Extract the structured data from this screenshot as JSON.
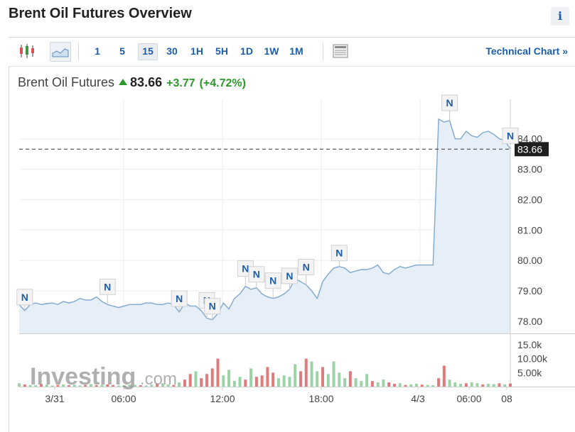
{
  "page": {
    "title": "Brent Oil Futures Overview",
    "info_label": "i"
  },
  "toolbar": {
    "chart_types": [
      "candlestick-chart-icon",
      "area-chart-icon"
    ],
    "timeframes": [
      "1",
      "5",
      "15",
      "30",
      "1H",
      "5H",
      "1D",
      "1W",
      "1M"
    ],
    "active_timeframe": "15",
    "technical_chart_label": "Technical Chart »"
  },
  "quote": {
    "name": "Brent Oil Futures",
    "price": "83.66",
    "change": "+3.77",
    "change_pct": "(+4.72%)"
  },
  "watermark": {
    "text": "Investing",
    "suffix": ".com"
  },
  "colors": {
    "line": "#7fa8d0",
    "area": "#e6eef7",
    "up_volume": "#9bd3a6",
    "down_volume": "#e07b7b",
    "last_label": "#1f1f1f"
  },
  "chart_data": [
    {
      "type": "area",
      "title": "Brent Oil Futures",
      "x_tick_labels": [
        "3/31",
        "06:00",
        "12:00",
        "18:00",
        "4/3",
        "06:00",
        "08"
      ],
      "y_tick_labels": [
        "78.00",
        "79.00",
        "80.00",
        "81.00",
        "82.00",
        "83.00",
        "84.00"
      ],
      "ylim": [
        77.6,
        85.3
      ],
      "last_value": 83.66,
      "last_value_label": "83.66",
      "grid": true,
      "x": [
        0,
        1,
        2,
        3,
        4,
        5,
        6,
        7,
        8,
        9,
        10,
        11,
        12,
        13,
        14,
        15,
        16,
        17,
        18,
        19,
        20,
        21,
        22,
        23,
        24,
        25,
        26,
        27,
        28,
        29,
        30,
        31,
        32,
        33,
        34,
        35,
        36,
        37,
        38,
        39,
        40,
        41,
        42,
        43,
        44,
        45,
        46,
        47,
        48,
        49,
        50,
        51,
        52,
        53,
        54,
        55,
        56,
        57,
        58,
        59,
        60,
        61,
        62,
        63,
        64,
        65,
        66,
        67,
        68,
        69,
        70,
        71,
        72,
        73,
        74,
        75,
        76,
        77,
        78,
        79,
        80,
        81,
        82,
        83,
        84,
        85,
        86,
        87,
        88,
        89
      ],
      "values": [
        78.55,
        78.35,
        78.55,
        78.6,
        78.55,
        78.58,
        78.6,
        78.55,
        78.65,
        78.6,
        78.65,
        78.75,
        78.7,
        78.7,
        78.8,
        78.65,
        78.55,
        78.5,
        78.45,
        78.5,
        78.55,
        78.55,
        78.55,
        78.6,
        78.6,
        78.55,
        78.55,
        78.6,
        78.55,
        78.3,
        78.6,
        78.5,
        78.5,
        78.35,
        78.1,
        78.05,
        78.25,
        78.6,
        78.4,
        78.75,
        78.9,
        79.15,
        79.05,
        79.1,
        78.9,
        78.8,
        78.75,
        78.8,
        78.9,
        79.05,
        79.4,
        79.3,
        79.2,
        79.0,
        78.75,
        79.3,
        79.55,
        79.75,
        79.8,
        79.75,
        79.6,
        79.65,
        79.7,
        79.7,
        79.75,
        79.85,
        79.6,
        79.55,
        79.7,
        79.8,
        79.75,
        79.8,
        79.85,
        79.85,
        79.85,
        79.85,
        84.65,
        84.55,
        84.6,
        84.0,
        84.0,
        84.25,
        84.1,
        84.05,
        84.2,
        84.25,
        84.15,
        84.0,
        83.95,
        83.66
      ],
      "news_markers": [
        {
          "label": "N",
          "index": 1
        },
        {
          "label": "N",
          "index": 16
        },
        {
          "label": "N",
          "index": 29
        },
        {
          "label": "N",
          "index": 34
        },
        {
          "label": "N",
          "index": 35
        },
        {
          "label": "N",
          "index": 41
        },
        {
          "label": "N",
          "index": 43
        },
        {
          "label": "N",
          "index": 46
        },
        {
          "label": "N",
          "index": 49
        },
        {
          "label": "N",
          "index": 52
        },
        {
          "label": "N",
          "index": 58
        },
        {
          "label": "N",
          "index": 78
        },
        {
          "label": "N",
          "index": 89
        }
      ]
    },
    {
      "type": "bar",
      "title": "Volume",
      "y_tick_labels": [
        "5.00k",
        "10.00k",
        "15.0k"
      ],
      "ylim": [
        0,
        17000
      ],
      "values": [
        1200,
        800,
        600,
        500,
        900,
        700,
        400,
        600,
        800,
        500,
        700,
        400,
        600,
        900,
        500,
        700,
        800,
        600,
        400,
        500,
        700,
        600,
        500,
        400,
        700,
        900,
        1200,
        800,
        600,
        1500,
        2500,
        4500,
        5500,
        3000,
        4500,
        6500,
        10000,
        4000,
        6000,
        2000,
        3500,
        2500,
        6500,
        3500,
        4000,
        7000,
        5000,
        3000,
        4000,
        3500,
        8000,
        5500,
        10000,
        9000,
        5500,
        7000,
        4500,
        9000,
        5000,
        3000,
        5500,
        3000,
        2000,
        4500,
        2000,
        1500,
        2500,
        1500,
        1000,
        1200,
        600,
        800,
        1000,
        700,
        600,
        500,
        3000,
        7500,
        2500,
        1500,
        1000,
        1200,
        1500,
        1200,
        800,
        1000,
        900,
        1200,
        800,
        1100
      ],
      "up": [
        1,
        0,
        1,
        1,
        0,
        1,
        1,
        0,
        1,
        0,
        1,
        1,
        0,
        1,
        0,
        1,
        0,
        0,
        1,
        1,
        1,
        1,
        0,
        1,
        1,
        0,
        1,
        1,
        0,
        1,
        0,
        0,
        1,
        0,
        0,
        0,
        0,
        1,
        1,
        1,
        1,
        0,
        1,
        0,
        0,
        0,
        0,
        1,
        1,
        1,
        1,
        0,
        0,
        1,
        1,
        0,
        1,
        1,
        1,
        1,
        0,
        1,
        1,
        1,
        0,
        1,
        1,
        0,
        0,
        1,
        0,
        1,
        1,
        0,
        1,
        1,
        0,
        0,
        1,
        1,
        1,
        0,
        1,
        1,
        0,
        1,
        1,
        0,
        1,
        0
      ]
    }
  ]
}
